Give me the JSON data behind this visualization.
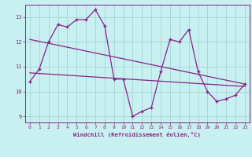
{
  "x": [
    0,
    1,
    2,
    3,
    4,
    5,
    6,
    7,
    8,
    9,
    10,
    11,
    12,
    13,
    14,
    15,
    16,
    17,
    18,
    19,
    20,
    21,
    22,
    23
  ],
  "line_main": [
    10.4,
    10.9,
    12.0,
    12.7,
    12.6,
    12.9,
    12.9,
    13.3,
    12.65,
    10.5,
    10.5,
    9.0,
    9.2,
    9.35,
    10.8,
    12.1,
    12.0,
    12.5,
    10.8,
    10.0,
    9.6,
    9.7,
    9.85,
    10.3
  ],
  "reg_upper_start": 12.1,
  "reg_upper_end": 10.3,
  "reg_lower_start": 10.75,
  "reg_lower_end": 10.2,
  "color": "#882288",
  "bg_color": "#c8f0f0",
  "grid_color": "#9ecece",
  "xlabel": "Windchill (Refroidissement éolien,°C)",
  "ylim": [
    8.75,
    13.5
  ],
  "xlim": [
    -0.5,
    23.5
  ],
  "yticks": [
    9,
    10,
    11,
    12,
    13
  ],
  "xticks": [
    0,
    1,
    2,
    3,
    4,
    5,
    6,
    7,
    8,
    9,
    10,
    11,
    12,
    13,
    14,
    15,
    16,
    17,
    18,
    19,
    20,
    21,
    22,
    23
  ]
}
